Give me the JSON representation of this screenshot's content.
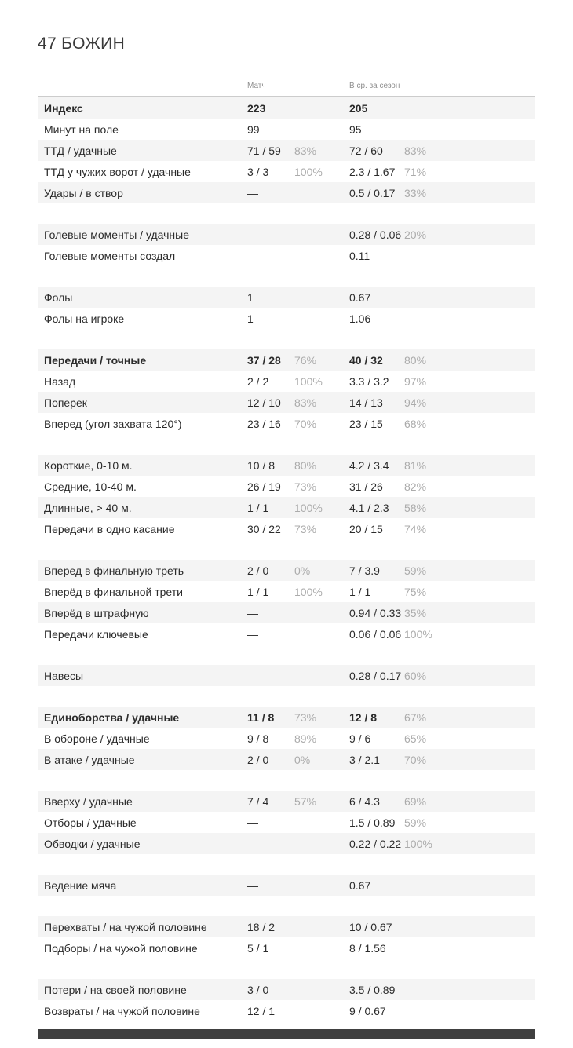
{
  "title": {
    "number": "47",
    "name": "БОЖИН"
  },
  "columns": {
    "match": "Матч",
    "season": "В ср. за сезон"
  },
  "groups": [
    {
      "rows": [
        {
          "label": "Индекс",
          "bold": true,
          "match": "223",
          "season": "205"
        },
        {
          "label": "Минут на поле",
          "match": "99",
          "season": "95"
        },
        {
          "label": "ТТД / удачные",
          "match": "71 / 59",
          "match_pct": "83%",
          "season": "72 / 60",
          "season_pct": "83%"
        },
        {
          "label": "ТТД у чужих ворот / удачные",
          "match": "3 / 3",
          "match_pct": "100%",
          "season": "2.3 / 1.67",
          "season_pct": "71%"
        },
        {
          "label": "Удары / в створ",
          "match": "—",
          "season": "0.5 / 0.17",
          "season_pct": "33%"
        }
      ]
    },
    {
      "rows": [
        {
          "label": "Голевые моменты / удачные",
          "match": "—",
          "season": "0.28 / 0.06",
          "season_pct": "20%"
        },
        {
          "label": "Голевые моменты создал",
          "match": "—",
          "season": "0.11"
        }
      ]
    },
    {
      "rows": [
        {
          "label": "Фолы",
          "match": "1",
          "season": "0.67"
        },
        {
          "label": "Фолы на игроке",
          "match": "1",
          "season": "1.06"
        }
      ]
    },
    {
      "rows": [
        {
          "label": "Передачи / точные",
          "bold": true,
          "match": "37 / 28",
          "match_pct": "76%",
          "season": "40 / 32",
          "season_pct": "80%"
        },
        {
          "label": "Назад",
          "match": "2 / 2",
          "match_pct": "100%",
          "season": "3.3 / 3.2",
          "season_pct": "97%"
        },
        {
          "label": "Поперек",
          "match": "12 / 10",
          "match_pct": "83%",
          "season": "14 / 13",
          "season_pct": "94%"
        },
        {
          "label": "Вперед (угол захвата 120°)",
          "match": "23 / 16",
          "match_pct": "70%",
          "season": "23 / 15",
          "season_pct": "68%"
        }
      ]
    },
    {
      "rows": [
        {
          "label": "Короткие, 0-10 м.",
          "match": "10 / 8",
          "match_pct": "80%",
          "season": "4.2 / 3.4",
          "season_pct": "81%"
        },
        {
          "label": "Средние, 10-40 м.",
          "match": "26 / 19",
          "match_pct": "73%",
          "season": "31 / 26",
          "season_pct": "82%"
        },
        {
          "label": "Длинные, > 40 м.",
          "match": "1 / 1",
          "match_pct": "100%",
          "season": "4.1 / 2.3",
          "season_pct": "58%"
        },
        {
          "label": "Передачи в одно касание",
          "match": "30 / 22",
          "match_pct": "73%",
          "season": "20 / 15",
          "season_pct": "74%"
        }
      ]
    },
    {
      "rows": [
        {
          "label": "Вперед в финальную треть",
          "match": "2 / 0",
          "match_pct": "0%",
          "season": "7 / 3.9",
          "season_pct": "59%"
        },
        {
          "label": "Вперёд в финальной трети",
          "match": "1 / 1",
          "match_pct": "100%",
          "season": "1 / 1",
          "season_pct": "75%"
        },
        {
          "label": "Вперёд в штрафную",
          "match": "—",
          "season": "0.94 / 0.33",
          "season_pct": "35%"
        },
        {
          "label": "Передачи ключевые",
          "match": "—",
          "season": "0.06 / 0.06",
          "season_pct": "100%"
        }
      ]
    },
    {
      "rows": [
        {
          "label": "Навесы",
          "match": "—",
          "season": "0.28 / 0.17",
          "season_pct": "60%"
        }
      ]
    },
    {
      "rows": [
        {
          "label": "Единоборства / удачные",
          "bold": true,
          "match": "11 / 8",
          "match_pct": "73%",
          "season": "12 / 8",
          "season_pct": "67%"
        },
        {
          "label": "В обороне / удачные",
          "match": "9 / 8",
          "match_pct": "89%",
          "season": "9 / 6",
          "season_pct": "65%"
        },
        {
          "label": "В атаке / удачные",
          "match": "2 / 0",
          "match_pct": "0%",
          "season": "3 / 2.1",
          "season_pct": "70%"
        }
      ]
    },
    {
      "rows": [
        {
          "label": "Вверху / удачные",
          "match": "7 / 4",
          "match_pct": "57%",
          "season": "6 / 4.3",
          "season_pct": "69%"
        },
        {
          "label": "Отборы / удачные",
          "match": "—",
          "season": "1.5 / 0.89",
          "season_pct": "59%"
        },
        {
          "label": "Обводки / удачные",
          "match": "—",
          "season": "0.22 / 0.22",
          "season_pct": "100%"
        }
      ]
    },
    {
      "rows": [
        {
          "label": "Ведение мяча",
          "match": "—",
          "season": "0.67"
        }
      ]
    },
    {
      "rows": [
        {
          "label": "Перехваты / на чужой половине",
          "match": "18 / 2",
          "season": "10 / 0.67"
        },
        {
          "label": "Подборы / на чужой половине",
          "match": "5 / 1",
          "season": "8 / 1.56"
        }
      ]
    },
    {
      "rows": [
        {
          "label": "Потери / на своей половине",
          "match": "3 / 0",
          "season": "3.5 / 0.89"
        },
        {
          "label": "Возвраты / на чужой половине",
          "match": "12 / 1",
          "season": "9 / 0.67"
        }
      ]
    }
  ]
}
